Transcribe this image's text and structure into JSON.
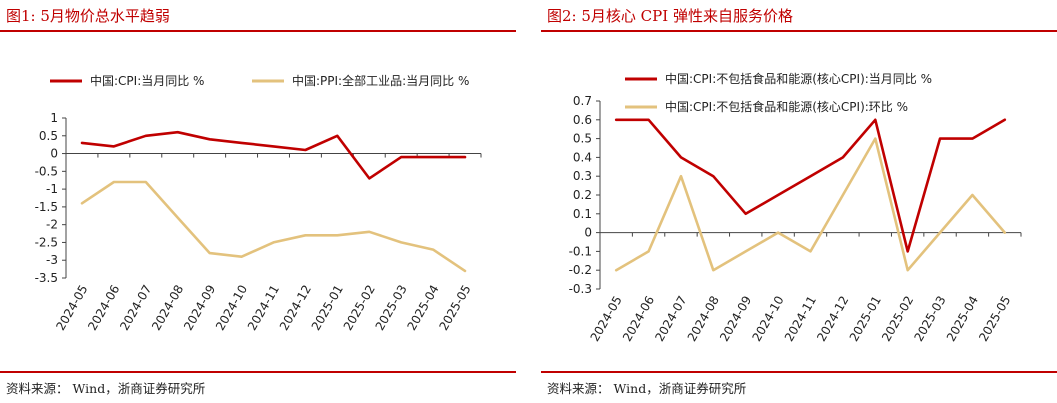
{
  "left": {
    "title": "图1:   5月物价总水平趋弱",
    "source_label": "资料来源：",
    "source_text": "Wind，浙商证券研究所"
  },
  "right": {
    "title": "图2:   5月核心 CPI 弹性来自服务价格",
    "source_label": "资料来源：",
    "source_text": "Wind，浙商证券研究所"
  },
  "chart_data": [
    {
      "type": "line",
      "title": "",
      "xlabel": "",
      "ylabel": "",
      "categories": [
        "2024-05",
        "2024-06",
        "2024-07",
        "2024-08",
        "2024-09",
        "2024-10",
        "2024-11",
        "2024-12",
        "2025-01",
        "2025-02",
        "2025-03",
        "2025-04",
        "2025-05"
      ],
      "ylim": [
        -3.5,
        1
      ],
      "yticks": [
        1,
        0.5,
        0,
        -0.5,
        -1,
        -1.5,
        -2,
        -2.5,
        -3,
        -3.5
      ],
      "ytick_labels": [
        "1",
        "0.5",
        "0",
        "-0.5",
        "-1",
        "-1.5",
        "-2",
        "-2.5",
        "-3",
        "-3.5"
      ],
      "grid": false,
      "legend_position": "top",
      "series": [
        {
          "name": "中国:CPI:当月同比 %",
          "color": "#c00000",
          "values": [
            0.3,
            0.2,
            0.5,
            0.6,
            0.4,
            0.3,
            0.2,
            0.1,
            0.5,
            -0.7,
            -0.1,
            -0.1,
            -0.1
          ]
        },
        {
          "name": "中国:PPI:全部工业品:当月同比 %",
          "color": "#e3c27d",
          "values": [
            -1.4,
            -0.8,
            -0.8,
            -1.8,
            -2.8,
            -2.9,
            -2.5,
            -2.3,
            -2.3,
            -2.2,
            -2.5,
            -2.7,
            -3.3
          ]
        }
      ]
    },
    {
      "type": "line",
      "title": "",
      "xlabel": "",
      "ylabel": "",
      "categories": [
        "2024-05",
        "2024-06",
        "2024-07",
        "2024-08",
        "2024-09",
        "2024-10",
        "2024-11",
        "2024-12",
        "2025-01",
        "2025-02",
        "2025-03",
        "2025-04",
        "2025-05"
      ],
      "ylim": [
        -0.3,
        0.7
      ],
      "yticks": [
        0.7,
        0.6,
        0.5,
        0.4,
        0.3,
        0.2,
        0.1,
        0,
        -0.1,
        -0.2,
        -0.3
      ],
      "ytick_labels": [
        "0.7",
        "0.6",
        "0.5",
        "0.4",
        "0.3",
        "0.2",
        "0.1",
        "0",
        "-0.1",
        "-0.2",
        "-0.3"
      ],
      "grid": false,
      "legend_position": "top",
      "series": [
        {
          "name": "中国:CPI:不包括食品和能源(核心CPI):当月同比 %",
          "color": "#c00000",
          "values": [
            0.6,
            0.6,
            0.4,
            0.3,
            0.1,
            0.2,
            0.3,
            0.4,
            0.6,
            -0.1,
            0.5,
            0.5,
            0.6
          ]
        },
        {
          "name": "中国:CPI:不包括食品和能源(核心CPI):环比 %",
          "color": "#e3c27d",
          "values": [
            -0.2,
            -0.1,
            0.3,
            -0.2,
            -0.1,
            0.0,
            -0.1,
            0.2,
            0.5,
            -0.2,
            0.0,
            0.2,
            0.0
          ]
        }
      ]
    }
  ]
}
